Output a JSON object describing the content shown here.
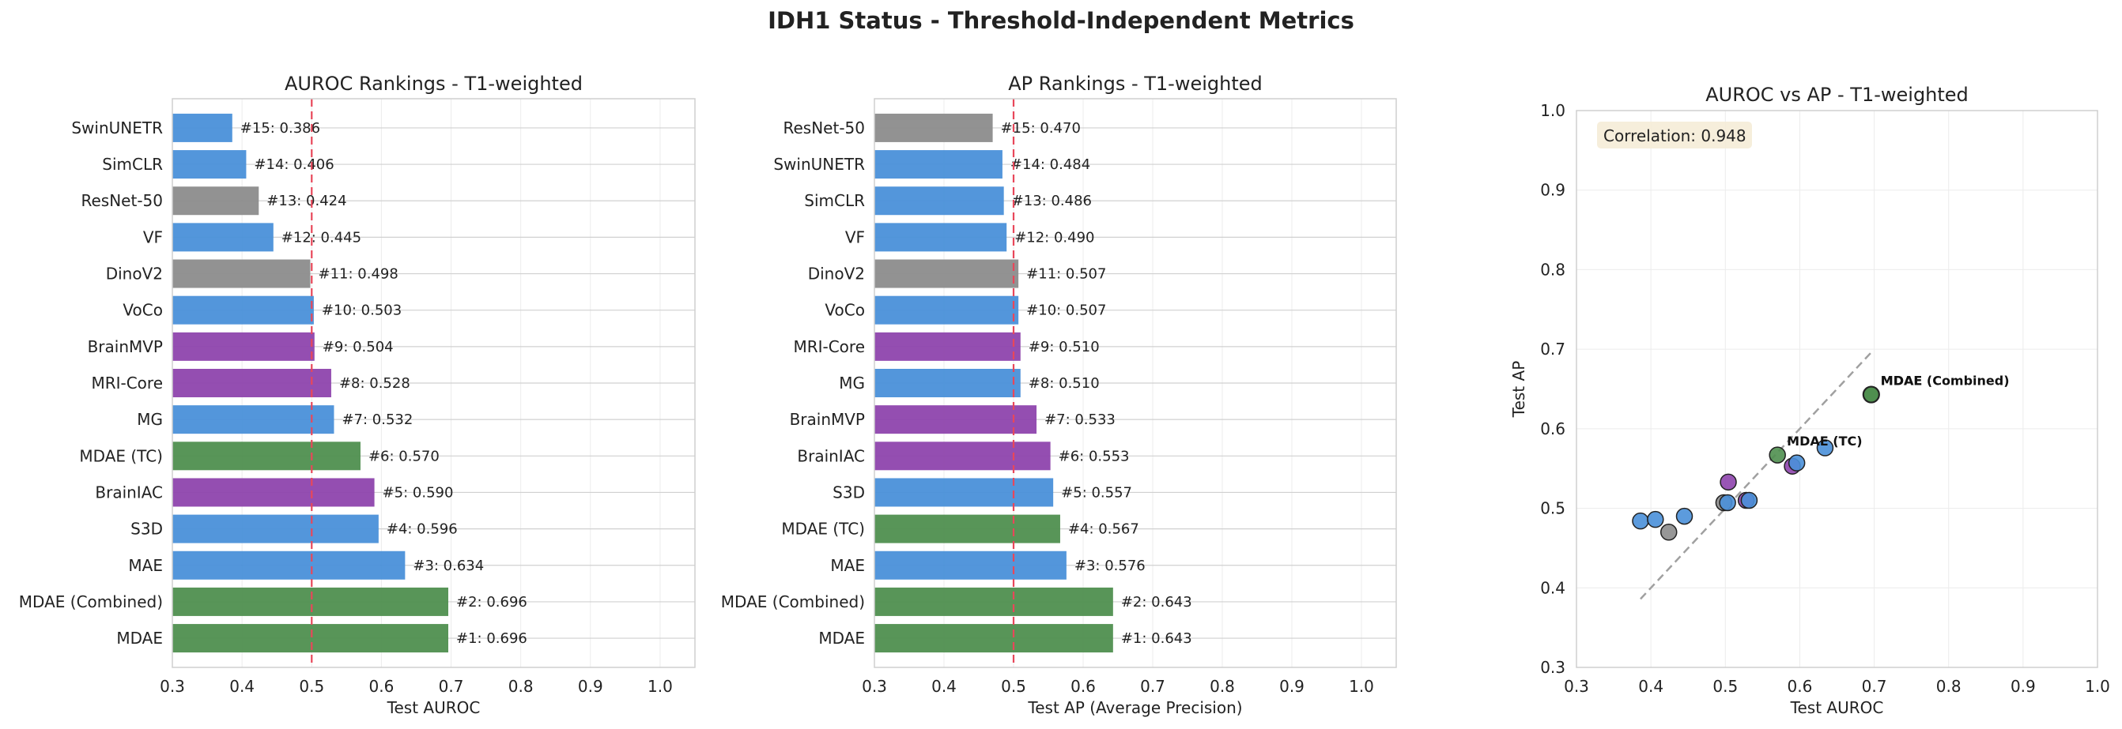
{
  "figure": {
    "title": "IDH1 Status - Threshold-Independent Metrics"
  },
  "colors": {
    "blue": "#4a90d9",
    "gray": "#8c8c8c",
    "purple": "#8e44ad",
    "green": "#4f8f4f",
    "refline": "#e8475a",
    "diag": "#a0a0a0",
    "corrbox": "#f5ecd7"
  },
  "chart_data": [
    {
      "type": "bar",
      "orientation": "horizontal",
      "title": "AUROC Rankings - T1-weighted",
      "xlabel": "Test AUROC",
      "xlim": [
        0.3,
        1.05
      ],
      "xticks": [
        "0.3",
        "0.4",
        "0.5",
        "0.6",
        "0.7",
        "0.8",
        "0.9",
        "1.0"
      ],
      "reference_line": 0.5,
      "grid": true,
      "categories": [
        "SwinUNETR",
        "SimCLR",
        "ResNet-50",
        "VF",
        "DinoV2",
        "VoCo",
        "BrainMVP",
        "MRI-Core",
        "MG",
        "MDAE (TC)",
        "BrainIAC",
        "S3D",
        "MAE",
        "MDAE (Combined)",
        "MDAE"
      ],
      "values": [
        0.386,
        0.406,
        0.424,
        0.445,
        0.498,
        0.503,
        0.504,
        0.528,
        0.532,
        0.57,
        0.59,
        0.596,
        0.634,
        0.696,
        0.696
      ],
      "ranks": [
        15,
        14,
        13,
        12,
        11,
        10,
        9,
        8,
        7,
        6,
        5,
        4,
        3,
        2,
        1
      ],
      "labels": [
        "#15: 0.386",
        "#14: 0.406",
        "#13: 0.424",
        "#12: 0.445",
        "#11: 0.498",
        "#10: 0.503",
        "#9: 0.504",
        "#8: 0.528",
        "#7: 0.532",
        "#6: 0.570",
        "#5: 0.590",
        "#4: 0.596",
        "#3: 0.634",
        "#2: 0.696",
        "#1: 0.696"
      ],
      "bar_colors": [
        "blue",
        "blue",
        "gray",
        "blue",
        "gray",
        "blue",
        "purple",
        "purple",
        "blue",
        "green",
        "purple",
        "blue",
        "blue",
        "green",
        "green"
      ]
    },
    {
      "type": "bar",
      "orientation": "horizontal",
      "title": "AP Rankings - T1-weighted",
      "xlabel": "Test AP (Average Precision)",
      "xlim": [
        0.3,
        1.05
      ],
      "xticks": [
        "0.3",
        "0.4",
        "0.5",
        "0.6",
        "0.7",
        "0.8",
        "0.9",
        "1.0"
      ],
      "reference_line": 0.5,
      "grid": true,
      "categories": [
        "ResNet-50",
        "SwinUNETR",
        "SimCLR",
        "VF",
        "DinoV2",
        "VoCo",
        "MRI-Core",
        "MG",
        "BrainMVP",
        "BrainIAC",
        "S3D",
        "MDAE (TC)",
        "MAE",
        "MDAE (Combined)",
        "MDAE"
      ],
      "values": [
        0.47,
        0.484,
        0.486,
        0.49,
        0.507,
        0.507,
        0.51,
        0.51,
        0.533,
        0.553,
        0.557,
        0.567,
        0.576,
        0.643,
        0.643
      ],
      "ranks": [
        15,
        14,
        13,
        12,
        11,
        10,
        9,
        8,
        7,
        6,
        5,
        4,
        3,
        2,
        1
      ],
      "labels": [
        "#15: 0.470",
        "#14: 0.484",
        "#13: 0.486",
        "#12: 0.490",
        "#11: 0.507",
        "#10: 0.507",
        "#9: 0.510",
        "#8: 0.510",
        "#7: 0.533",
        "#6: 0.553",
        "#5: 0.557",
        "#4: 0.567",
        "#3: 0.576",
        "#2: 0.643",
        "#1: 0.643"
      ],
      "bar_colors": [
        "gray",
        "blue",
        "blue",
        "blue",
        "gray",
        "blue",
        "purple",
        "blue",
        "purple",
        "purple",
        "blue",
        "green",
        "blue",
        "green",
        "green"
      ]
    },
    {
      "type": "scatter",
      "title": "AUROC vs AP - T1-weighted",
      "xlabel": "Test AUROC",
      "ylabel": "Test AP",
      "xlim": [
        0.3,
        1.0
      ],
      "ylim": [
        0.3,
        1.0
      ],
      "xticks": [
        "0.3",
        "0.4",
        "0.5",
        "0.6",
        "0.7",
        "0.8",
        "0.9",
        "1.0"
      ],
      "yticks": [
        "0.3",
        "0.4",
        "0.5",
        "0.6",
        "0.7",
        "0.8",
        "0.9",
        "1.0"
      ],
      "grid": true,
      "correlation_text": "Correlation: 0.948",
      "diagonal": [
        0.386,
        0.696
      ],
      "points": [
        {
          "model": "SwinUNETR",
          "x": 0.386,
          "y": 0.484,
          "color": "blue"
        },
        {
          "model": "SimCLR",
          "x": 0.406,
          "y": 0.486,
          "color": "blue"
        },
        {
          "model": "ResNet-50",
          "x": 0.424,
          "y": 0.47,
          "color": "gray"
        },
        {
          "model": "VF",
          "x": 0.445,
          "y": 0.49,
          "color": "blue"
        },
        {
          "model": "DinoV2",
          "x": 0.498,
          "y": 0.507,
          "color": "gray"
        },
        {
          "model": "VoCo",
          "x": 0.503,
          "y": 0.507,
          "color": "blue"
        },
        {
          "model": "BrainMVP",
          "x": 0.504,
          "y": 0.533,
          "color": "purple"
        },
        {
          "model": "MRI-Core",
          "x": 0.528,
          "y": 0.51,
          "color": "purple"
        },
        {
          "model": "MG",
          "x": 0.532,
          "y": 0.51,
          "color": "blue"
        },
        {
          "model": "MDAE (TC)",
          "x": 0.57,
          "y": 0.567,
          "color": "green",
          "annotated": true
        },
        {
          "model": "BrainIAC",
          "x": 0.59,
          "y": 0.553,
          "color": "purple"
        },
        {
          "model": "S3D",
          "x": 0.596,
          "y": 0.557,
          "color": "blue"
        },
        {
          "model": "MAE",
          "x": 0.634,
          "y": 0.576,
          "color": "blue"
        },
        {
          "model": "MDAE (Combined)",
          "x": 0.696,
          "y": 0.643,
          "color": "green",
          "annotated": true
        },
        {
          "model": "MDAE",
          "x": 0.696,
          "y": 0.643,
          "color": "green",
          "highlight": true,
          "annotated": true
        }
      ]
    }
  ]
}
